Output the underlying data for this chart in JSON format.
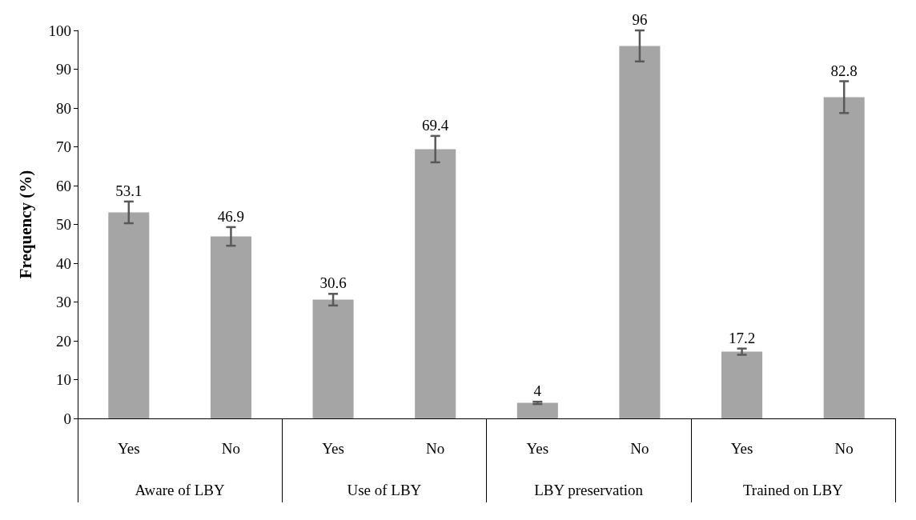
{
  "chart_data": {
    "type": "bar",
    "ylabel": "Frequency (%)",
    "categories": [
      "Yes",
      "No",
      "Yes",
      "No",
      "Yes",
      "No",
      "Yes",
      "No"
    ],
    "values": [
      53.1,
      46.9,
      30.6,
      69.4,
      4,
      96,
      17.2,
      82.8
    ],
    "errors": [
      2.8,
      2.4,
      1.5,
      3.4,
      0.3,
      4,
      0.8,
      4.1
    ],
    "color": "#a5a5a5",
    "annotations": [
      "Aware of LBY",
      "Use of LBY",
      "LBY preservation",
      "Trained on LBY"
    ],
    "ylim": [
      0,
      100
    ],
    "yticks": [
      0,
      10,
      20,
      30,
      40,
      50,
      60,
      70,
      80,
      90,
      100
    ],
    "data_labels": true,
    "grid": false
  }
}
